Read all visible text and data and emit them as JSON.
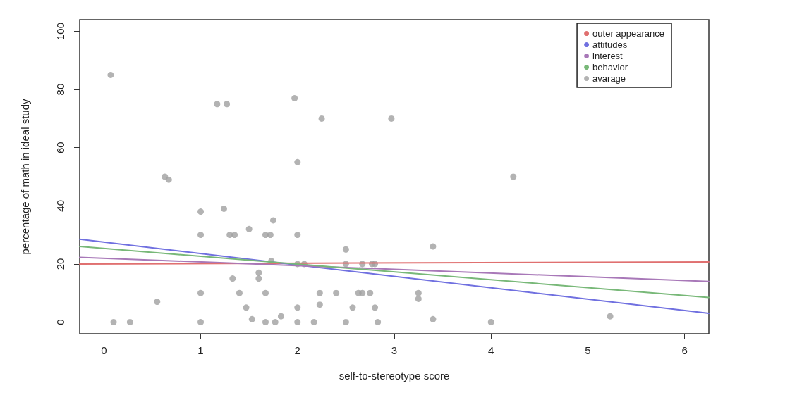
{
  "chart_data": {
    "type": "scatter",
    "xlabel": "self-to-stereotype score",
    "ylabel": "percentage of math in ideal study",
    "xlim": [
      -0.25,
      6.25
    ],
    "ylim": [
      -4,
      104
    ],
    "xticks": [
      0,
      1,
      2,
      3,
      4,
      5,
      6
    ],
    "yticks": [
      0,
      20,
      40,
      60,
      80,
      100
    ],
    "grid": false,
    "legend": "top right",
    "series": [
      {
        "name": "outer appearance",
        "type": "line",
        "color": "#e07070",
        "marker": "none",
        "line_style": "solid",
        "x": [
          -0.25,
          6.25
        ],
        "values": [
          20,
          20.7
        ]
      },
      {
        "name": "attitudes",
        "type": "line",
        "color": "#7070e0",
        "marker": "none",
        "line_style": "solid",
        "x": [
          -0.25,
          6.25
        ],
        "values": [
          28.5,
          3
        ]
      },
      {
        "name": "interest",
        "type": "line",
        "color": "#a878b8",
        "marker": "none",
        "line_style": "solid",
        "x": [
          -0.25,
          6.25
        ],
        "values": [
          22.3,
          14
        ]
      },
      {
        "name": "behavior",
        "type": "line",
        "color": "#78b878",
        "marker": "none",
        "line_style": "solid",
        "x": [
          -0.25,
          6.25
        ],
        "values": [
          26,
          8.5
        ]
      },
      {
        "name": "avarage",
        "color": "#a0a0a0",
        "marker": "circle",
        "x": [
          0.07,
          0.1,
          0.27,
          0.55,
          0.63,
          0.67,
          1,
          1,
          1,
          1,
          1.17,
          1.27,
          1.24,
          1.3,
          1.35,
          1.33,
          1.4,
          1.47,
          1.5,
          1.53,
          1.6,
          1.6,
          1.67,
          1.72,
          1.67,
          1.67,
          1.75,
          1.77,
          1.73,
          1.83,
          1.97,
          2,
          2,
          2,
          2,
          2,
          2.07,
          2.17,
          2.23,
          2.23,
          2.25,
          2.4,
          2.5,
          2.5,
          2.5,
          2.57,
          2.63,
          2.67,
          2.67,
          2.75,
          2.77,
          2.8,
          2.8,
          2.83,
          2.97,
          3.25,
          3.25,
          3.4,
          3.4,
          4,
          4.23,
          5.23
        ],
        "values": [
          85,
          0,
          0,
          7,
          50,
          49,
          38,
          30,
          10,
          0,
          75,
          75,
          39,
          30,
          30,
          15,
          10,
          5,
          32,
          1,
          17,
          15,
          30,
          30,
          10,
          0,
          35,
          0,
          21,
          2,
          77,
          55,
          30,
          20,
          5,
          0,
          20,
          0,
          10,
          6,
          70,
          10,
          25,
          20,
          0,
          5,
          10,
          10,
          20,
          10,
          20,
          20,
          5,
          0,
          70,
          10,
          8,
          26,
          1,
          0,
          50,
          2
        ]
      }
    ]
  }
}
